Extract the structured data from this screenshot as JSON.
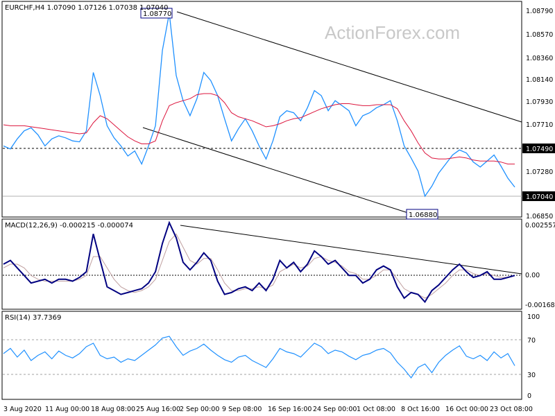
{
  "watermark": "ActionForex.com",
  "chart_data": [
    {
      "type": "line",
      "title": "EURCHF,H4  1.07090 1.07126 1.07038 1.07040",
      "ylim": [
        1.0675,
        1.0888
      ],
      "y_ticks": [
        "1.08790",
        "1.08570",
        "1.08360",
        "1.08140",
        "1.07930",
        "1.07710",
        "1.07280",
        "1.06850"
      ],
      "x_tick_labels": [
        "3 Aug 2020",
        "11 Aug 00:00",
        "18 Aug 08:00",
        "25 Aug 16:00",
        "2 Sep 00:00",
        "9 Sep 08:00",
        "16 Sep 16:00",
        "24 Sep 00:00",
        "1 Oct 08:00",
        "8 Oct 16:00",
        "16 Oct 00:00",
        "23 Oct 08:00"
      ],
      "series": [
        {
          "role": "price",
          "values": [
            1.0745,
            1.0742,
            1.0752,
            1.076,
            1.0763,
            1.0756,
            1.0745,
            1.0752,
            1.0755,
            1.0753,
            1.075,
            1.0749,
            1.076,
            1.0818,
            1.0795,
            1.0765,
            1.0753,
            1.0745,
            1.0735,
            1.074,
            1.0727,
            1.0745,
            1.0765,
            1.084,
            1.0877,
            1.0815,
            1.079,
            1.0775,
            1.0792,
            1.0818,
            1.081,
            1.0795,
            1.0772,
            1.075,
            1.0762,
            1.0772,
            1.076,
            1.0745,
            1.0732,
            1.075,
            1.0774,
            1.078,
            1.0778,
            1.077,
            1.0783,
            1.08,
            1.0795,
            1.078,
            1.079,
            1.0785,
            1.078,
            1.0765,
            1.0775,
            1.0778,
            1.0783,
            1.0786,
            1.079,
            1.077,
            1.0745,
            1.0733,
            1.072,
            1.0695,
            1.0705,
            1.0718,
            1.0727,
            1.0736,
            1.0741,
            1.0738,
            1.0729,
            1.0724,
            1.073,
            1.0736,
            1.0725,
            1.0713,
            1.0704
          ]
        },
        {
          "role": "moving-average",
          "values": [
            1.0766,
            1.0765,
            1.0765,
            1.0765,
            1.0764,
            1.0763,
            1.0762,
            1.0761,
            1.076,
            1.0759,
            1.0758,
            1.0757,
            1.0758,
            1.0768,
            1.0775,
            1.0772,
            1.0766,
            1.076,
            1.0754,
            1.075,
            1.0747,
            1.0747,
            1.075,
            1.077,
            1.0785,
            1.0788,
            1.079,
            1.0792,
            1.0796,
            1.0797,
            1.0797,
            1.0795,
            1.0788,
            1.0778,
            1.0774,
            1.0772,
            1.077,
            1.0767,
            1.0764,
            1.0765,
            1.0767,
            1.077,
            1.0772,
            1.0773,
            1.0776,
            1.0779,
            1.0782,
            1.0784,
            1.0786,
            1.0787,
            1.0787,
            1.0786,
            1.0785,
            1.0785,
            1.0786,
            1.0786,
            1.0786,
            1.0782,
            1.077,
            1.076,
            1.0748,
            1.0738,
            1.0733,
            1.0732,
            1.0732,
            1.0733,
            1.0734,
            1.0733,
            1.0731,
            1.073,
            1.073,
            1.073,
            1.0729,
            1.0727,
            1.0727
          ]
        }
      ],
      "trendlines": [
        {
          "from": {
            "i": 24,
            "y": 1.0877
          },
          "to": {
            "i": 75,
            "y": 1.0775
          }
        },
        {
          "from": {
            "i": 19,
            "y": 1.0768
          },
          "to": {
            "i": 59,
            "y": 1.0688
          }
        }
      ],
      "horizontal_lines": [
        {
          "y": 1.0749,
          "label": "1.07490",
          "style": "dashed"
        },
        {
          "y": 1.0704,
          "label": "1.07040",
          "style": "solid"
        }
      ],
      "annotations": [
        {
          "text": "1.08770",
          "i": 21,
          "y": 1.0877
        },
        {
          "text": "1.06880",
          "i": 61,
          "y": 1.0688
        }
      ]
    },
    {
      "type": "line",
      "title": "MACD(12,26,9) -0.000215 -0.000074",
      "ylim": [
        -0.00195,
        0.00275
      ],
      "y_ticks": [
        "0.002557",
        "0.00",
        "-0.001685"
      ],
      "series": [
        {
          "role": "macd",
          "values": [
            0.0004,
            0.0006,
            0.0002,
            -0.0002,
            -0.0006,
            -0.0005,
            -0.0004,
            -0.0006,
            -0.0004,
            -0.0004,
            -0.0005,
            -0.0003,
            0.0,
            0.002,
            0.0006,
            -0.0008,
            -0.001,
            -0.0012,
            -0.0011,
            -0.001,
            -0.0009,
            -0.0006,
            0.0,
            0.0015,
            0.0026,
            0.0018,
            0.0005,
            0.0001,
            0.0005,
            0.001,
            0.0006,
            -0.0005,
            -0.0012,
            -0.0011,
            -0.0009,
            -0.0008,
            -0.001,
            -0.0006,
            -0.001,
            -0.0004,
            0.0006,
            0.0002,
            0.0005,
            0.0,
            0.0004,
            0.0011,
            0.0008,
            0.0004,
            0.0006,
            0.0002,
            -0.0002,
            -0.0002,
            -0.0006,
            -0.0004,
            0.0001,
            0.0003,
            0.0001,
            -0.0008,
            -0.0014,
            -0.0011,
            -0.0012,
            -0.0016,
            -0.001,
            -0.0007,
            -0.0003,
            0.0001,
            0.0004,
            0.0,
            -0.0003,
            -0.0002,
            0.0,
            -0.0004,
            -0.0004,
            -0.0003,
            -0.0002
          ]
        },
        {
          "role": "signal",
          "values": [
            0.0002,
            0.0004,
            0.0004,
            0.0002,
            -0.0002,
            -0.0004,
            -0.0005,
            -0.0005,
            -0.0005,
            -0.0005,
            -0.0005,
            -0.0004,
            -0.0002,
            0.0008,
            0.0008,
            0.0002,
            -0.0004,
            -0.0008,
            -0.001,
            -0.0011,
            -0.001,
            -0.0008,
            -0.0004,
            0.0006,
            0.0016,
            0.002,
            0.0013,
            0.0006,
            0.0004,
            0.0007,
            0.0007,
            0.0001,
            -0.0006,
            -0.001,
            -0.001,
            -0.0009,
            -0.0009,
            -0.0008,
            -0.0009,
            -0.0007,
            0.0,
            0.0002,
            0.0004,
            0.0002,
            0.0003,
            0.0007,
            0.0008,
            0.0006,
            0.0005,
            0.0003,
            0.0,
            -0.0001,
            -0.0004,
            -0.0004,
            -0.0002,
            0.0001,
            0.0001,
            -0.0004,
            -0.0009,
            -0.0011,
            -0.0012,
            -0.0014,
            -0.0012,
            -0.0009,
            -0.0006,
            -0.0002,
            0.0001,
            0.0001,
            -0.0001,
            -0.0002,
            -0.0001,
            -0.0002,
            -0.0003,
            -0.0003,
            -0.0002
          ]
        }
      ],
      "trendline": {
        "from": {
          "i": 24,
          "y": 0.0026
        },
        "to": {
          "i": 75,
          "y": -0.0001
        }
      }
    },
    {
      "type": "line",
      "title": "RSI(14) 37.7369",
      "ylim": [
        0,
        100
      ],
      "y_ticks": [
        "100",
        "70",
        "30",
        "0"
      ],
      "levels": [
        70,
        30
      ],
      "series": [
        {
          "role": "rsi",
          "values": [
            52,
            58,
            48,
            56,
            44,
            50,
            54,
            46,
            55,
            50,
            47,
            52,
            60,
            64,
            50,
            46,
            48,
            42,
            46,
            44,
            50,
            56,
            62,
            70,
            72,
            60,
            50,
            55,
            58,
            63,
            56,
            50,
            45,
            42,
            48,
            50,
            44,
            40,
            36,
            46,
            58,
            54,
            52,
            48,
            56,
            64,
            60,
            52,
            56,
            54,
            49,
            45,
            50,
            52,
            56,
            58,
            53,
            42,
            34,
            24,
            36,
            40,
            30,
            42,
            50,
            56,
            61,
            49,
            46,
            50,
            44,
            54,
            47,
            52,
            38
          ]
        }
      ]
    }
  ]
}
